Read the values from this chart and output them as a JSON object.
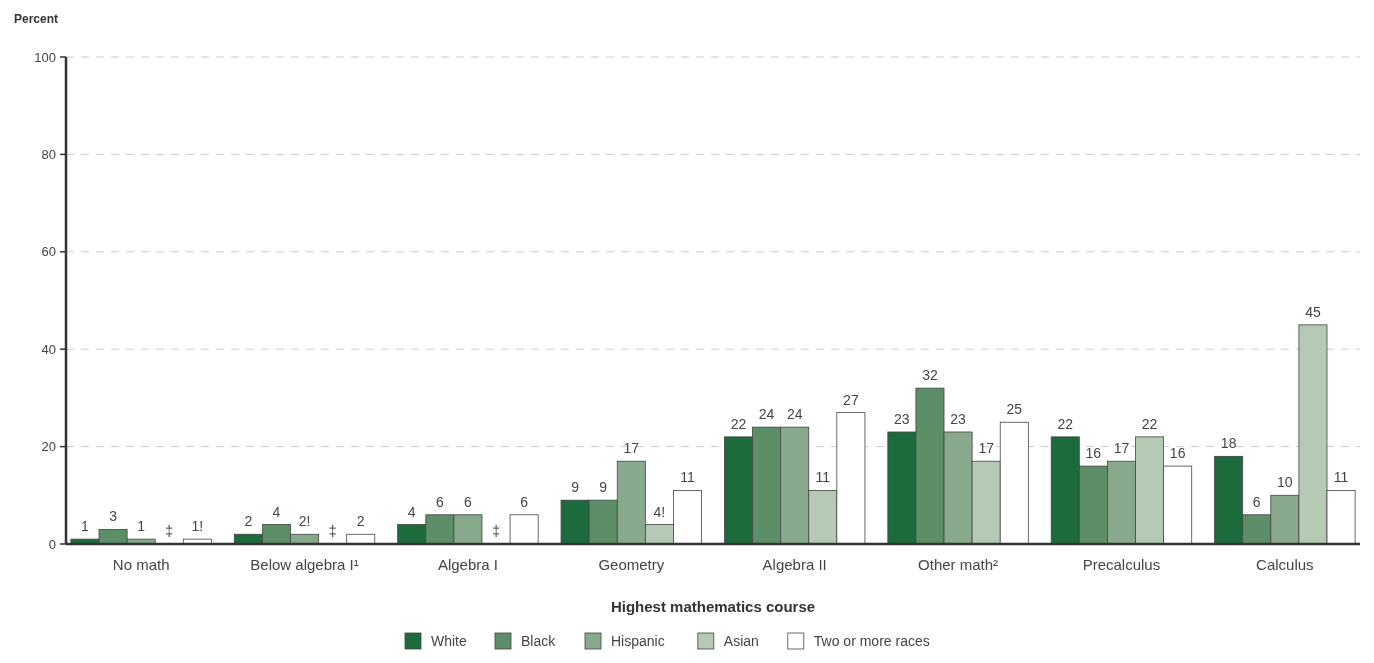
{
  "chart_data": {
    "type": "bar",
    "ylabel": "Percent",
    "xlabel": "Highest mathematics course",
    "categories": [
      "No math",
      "Below algebra I¹",
      "Algebra I",
      "Geometry",
      "Algebra II",
      "Other math²",
      "Precalculus",
      "Calculus"
    ],
    "series": [
      {
        "name": "White",
        "color": "#1b6b3c",
        "values": [
          1,
          2,
          4,
          9,
          22,
          23,
          22,
          18
        ],
        "value_labels": [
          "1",
          "2",
          "4",
          "9",
          "22",
          "23",
          "22",
          "18"
        ]
      },
      {
        "name": "Black",
        "color": "#5c8f68",
        "values": [
          3,
          4,
          6,
          9,
          24,
          32,
          16,
          6
        ],
        "value_labels": [
          "3",
          "4",
          "6",
          "9",
          "24",
          "32",
          "16",
          "6"
        ]
      },
      {
        "name": "Hispanic",
        "color": "#88a98c",
        "values": [
          1,
          2,
          6,
          17,
          24,
          23,
          17,
          10
        ],
        "value_labels": [
          "1",
          "2!",
          "6",
          "17",
          "24",
          "23",
          "17",
          "10"
        ]
      },
      {
        "name": "Asian",
        "color": "#b6c9b5",
        "values": [
          null,
          null,
          null,
          4,
          11,
          17,
          22,
          45
        ],
        "value_labels": [
          "‡",
          "‡",
          "‡",
          "4!",
          "11",
          "17",
          "22",
          "45"
        ]
      },
      {
        "name": "Two or more races",
        "color": "#ffffff",
        "values": [
          1,
          2,
          6,
          11,
          27,
          25,
          16,
          11
        ],
        "value_labels": [
          "1!",
          "2",
          "6",
          "11",
          "27",
          "25",
          "16",
          "11"
        ]
      }
    ],
    "ylim": [
      0,
      100
    ],
    "yticks": [
      0,
      20,
      40,
      60,
      80,
      100
    ],
    "grid": "y",
    "legend": "bottom"
  }
}
